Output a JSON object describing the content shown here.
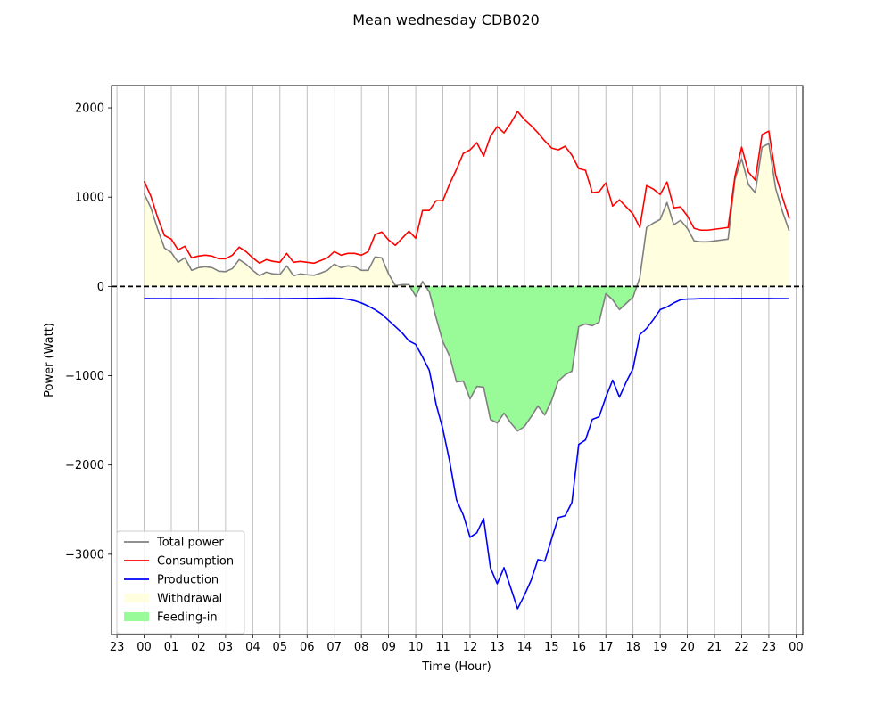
{
  "chart_data": {
    "type": "line",
    "title": "Mean wednesday CDB020",
    "xlabel": "Time (Hour)",
    "ylabel": "Power (Watt)",
    "xlim": [
      -1.2,
      24.25
    ],
    "ylim": [
      -3900,
      2250
    ],
    "x_ticks": [
      {
        "value": -1,
        "label": "23"
      },
      {
        "value": 0,
        "label": "00"
      },
      {
        "value": 1,
        "label": "01"
      },
      {
        "value": 2,
        "label": "02"
      },
      {
        "value": 3,
        "label": "03"
      },
      {
        "value": 4,
        "label": "04"
      },
      {
        "value": 5,
        "label": "05"
      },
      {
        "value": 6,
        "label": "06"
      },
      {
        "value": 7,
        "label": "07"
      },
      {
        "value": 8,
        "label": "08"
      },
      {
        "value": 9,
        "label": "09"
      },
      {
        "value": 10,
        "label": "10"
      },
      {
        "value": 11,
        "label": "11"
      },
      {
        "value": 12,
        "label": "12"
      },
      {
        "value": 13,
        "label": "13"
      },
      {
        "value": 14,
        "label": "14"
      },
      {
        "value": 15,
        "label": "15"
      },
      {
        "value": 16,
        "label": "16"
      },
      {
        "value": 17,
        "label": "17"
      },
      {
        "value": 18,
        "label": "18"
      },
      {
        "value": 19,
        "label": "19"
      },
      {
        "value": 20,
        "label": "20"
      },
      {
        "value": 21,
        "label": "21"
      },
      {
        "value": 22,
        "label": "22"
      },
      {
        "value": 23,
        "label": "23"
      },
      {
        "value": 24,
        "label": "00"
      }
    ],
    "y_ticks": [
      {
        "value": 2000,
        "label": "2000"
      },
      {
        "value": 1000,
        "label": "1000"
      },
      {
        "value": 0,
        "label": "0"
      },
      {
        "value": -1000,
        "label": "−1000"
      },
      {
        "value": -2000,
        "label": "−2000"
      },
      {
        "value": -3000,
        "label": "−3000"
      }
    ],
    "grid": "vertical",
    "reference_line": {
      "y": 0,
      "style": "dashed",
      "color": "#000000"
    },
    "x_step_hours": 0.25,
    "series": [
      {
        "name": "Total power",
        "color": "#808080",
        "values": [
          1040,
          880,
          640,
          430,
          380,
          270,
          320,
          180,
          210,
          220,
          210,
          170,
          165,
          200,
          300,
          250,
          180,
          120,
          160,
          140,
          135,
          230,
          120,
          140,
          130,
          125,
          150,
          180,
          250,
          210,
          230,
          220,
          180,
          180,
          330,
          320,
          140,
          10,
          20,
          20,
          -110,
          55,
          -60,
          -350,
          -620,
          -780,
          -1070,
          -1060,
          -1260,
          -1120,
          -1130,
          -1490,
          -1530,
          -1420,
          -1530,
          -1620,
          -1570,
          -1460,
          -1340,
          -1440,
          -1280,
          -1060,
          -990,
          -950,
          -450,
          -420,
          -440,
          -400,
          -80,
          -150,
          -260,
          -190,
          -120,
          100,
          660,
          710,
          750,
          940,
          690,
          740,
          650,
          510,
          500,
          500,
          510,
          520,
          530,
          1200,
          1430,
          1140,
          1050,
          1560,
          1600,
          1100,
          840,
          620
        ]
      },
      {
        "name": "Consumption",
        "color": "#ff0000",
        "values": [
          1180,
          1010,
          770,
          570,
          530,
          410,
          450,
          320,
          340,
          350,
          340,
          310,
          310,
          350,
          440,
          390,
          320,
          260,
          300,
          280,
          270,
          370,
          270,
          280,
          270,
          260,
          290,
          320,
          390,
          350,
          370,
          370,
          350,
          390,
          580,
          610,
          520,
          460,
          540,
          620,
          540,
          850,
          850,
          960,
          960,
          1150,
          1310,
          1490,
          1530,
          1610,
          1460,
          1680,
          1790,
          1720,
          1830,
          1960,
          1870,
          1800,
          1720,
          1630,
          1550,
          1530,
          1570,
          1470,
          1320,
          1300,
          1050,
          1060,
          1160,
          900,
          970,
          890,
          810,
          660,
          1130,
          1090,
          1030,
          1170,
          880,
          890,
          790,
          650,
          630,
          630,
          640,
          650,
          660,
          1230,
          1560,
          1280,
          1190,
          1700,
          1740,
          1250,
          1000,
          760
        ]
      },
      {
        "name": "Production",
        "color": "#0000ff",
        "values": [
          -135,
          -136,
          -136,
          -137,
          -137,
          -137,
          -137,
          -137,
          -137,
          -137,
          -137,
          -138,
          -138,
          -138,
          -138,
          -138,
          -138,
          -138,
          -137,
          -137,
          -136,
          -136,
          -135,
          -135,
          -134,
          -134,
          -133,
          -132,
          -132,
          -134,
          -145,
          -160,
          -185,
          -220,
          -260,
          -310,
          -380,
          -450,
          -520,
          -610,
          -650,
          -790,
          -940,
          -1320,
          -1600,
          -1960,
          -2390,
          -2560,
          -2810,
          -2760,
          -2600,
          -3150,
          -3330,
          -3150,
          -3380,
          -3610,
          -3460,
          -3290,
          -3060,
          -3080,
          -2830,
          -2590,
          -2570,
          -2420,
          -1770,
          -1720,
          -1490,
          -1460,
          -1240,
          -1050,
          -1240,
          -1070,
          -920,
          -540,
          -470,
          -370,
          -260,
          -230,
          -185,
          -150,
          -142,
          -140,
          -137,
          -137,
          -136,
          -136,
          -136,
          -135,
          -135,
          -135,
          -135,
          -135,
          -135,
          -136,
          -137,
          -138
        ]
      }
    ],
    "legend": {
      "position": "lower left",
      "entries": [
        {
          "label": "Total power",
          "kind": "line",
          "color": "#808080"
        },
        {
          "label": "Consumption",
          "kind": "line",
          "color": "#ff0000"
        },
        {
          "label": "Production",
          "kind": "line",
          "color": "#0000ff"
        },
        {
          "label": "Withdrawal",
          "kind": "fill",
          "color": "#ffffe0"
        },
        {
          "label": "Feeding-in",
          "kind": "fill",
          "color": "#98fb98"
        }
      ]
    }
  }
}
